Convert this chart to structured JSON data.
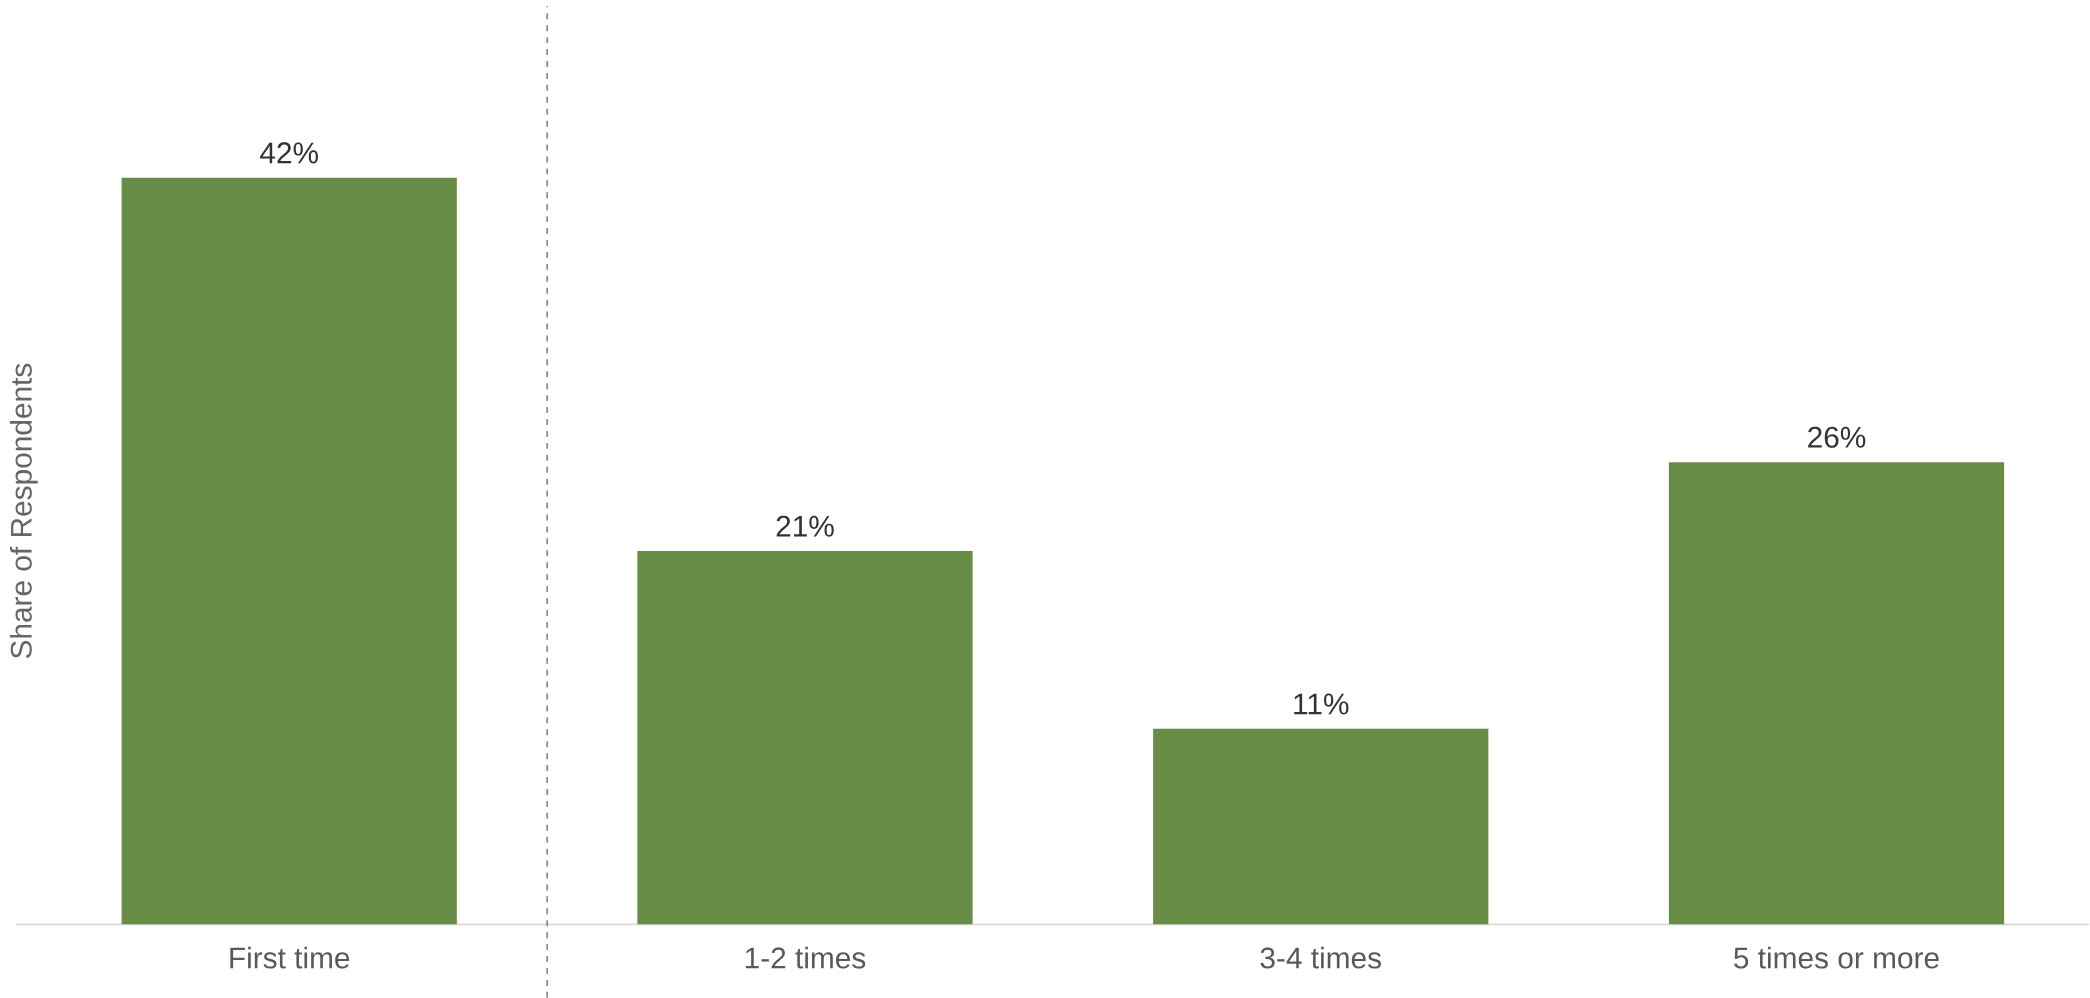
{
  "chart_data": {
    "type": "bar",
    "ylabel": "Share of Respondents",
    "categories": [
      "First time",
      "1-2 times",
      "3-4 times",
      "5 times or more"
    ],
    "values": [
      42,
      21,
      11,
      26
    ],
    "value_labels": [
      "42%",
      "21%",
      "11%",
      "26%"
    ],
    "color": "#668c46"
  }
}
